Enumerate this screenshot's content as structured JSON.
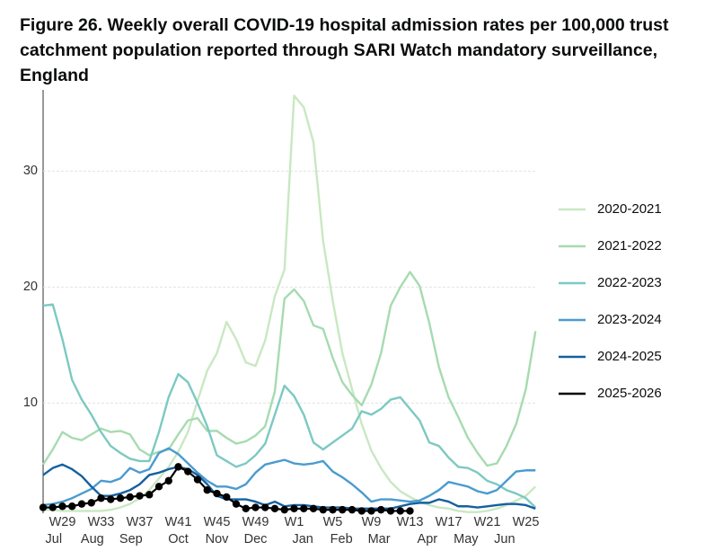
{
  "chart_data": {
    "type": "line",
    "title": "Figure 26. Weekly overall COVID-19 hospital admission rates per 100,000 trust catchment population reported through SARI Watch mandatory surveillance, England",
    "categories": [
      null,
      null,
      "W29",
      null,
      null,
      null,
      "W33",
      null,
      null,
      null,
      "W37",
      null,
      null,
      null,
      "W41",
      null,
      null,
      null,
      "W45",
      null,
      null,
      null,
      "W49",
      null,
      null,
      null,
      "W1",
      null,
      null,
      null,
      "W5",
      null,
      null,
      null,
      "W9",
      null,
      null,
      null,
      "W13",
      null,
      null,
      null,
      "W17",
      null,
      null,
      null,
      "W21",
      null,
      null,
      null,
      "W25",
      null
    ],
    "month_ticks": [
      {
        "value": 1.1,
        "label": "Jul"
      },
      {
        "value": 5.1,
        "label": "Aug"
      },
      {
        "value": 9.1,
        "label": "Sep"
      },
      {
        "value": 14,
        "label": "Oct"
      },
      {
        "value": 18,
        "label": "Nov"
      },
      {
        "value": 22,
        "label": "Dec"
      },
      {
        "value": 26.9,
        "label": "Jan"
      },
      {
        "value": 30.9,
        "label": "Feb"
      },
      {
        "value": 34.8,
        "label": "Mar"
      },
      {
        "value": 39.8,
        "label": "Apr"
      },
      {
        "value": 43.8,
        "label": "May"
      },
      {
        "value": 47.8,
        "label": "Jun"
      }
    ],
    "ylim": [
      0.5,
      37
    ],
    "yticks": [
      10,
      20,
      30
    ],
    "grid": true,
    "series": [
      {
        "name": "2020-2021",
        "color": "#c9e8c2",
        "values": [
          0.8,
          0.8,
          0.7,
          0.7,
          0.7,
          0.7,
          0.7,
          0.8,
          1.0,
          1.3,
          1.8,
          2.5,
          3.5,
          4.5,
          5.8,
          7.5,
          10.2,
          12.8,
          14.3,
          17,
          15.5,
          13.5,
          13.2,
          15.4,
          19.2,
          21.5,
          36.5,
          35.5,
          32.5,
          24,
          18.8,
          14.3,
          11.2,
          8.2,
          5.9,
          4.4,
          3.2,
          2.4,
          1.9,
          1.5,
          1.2,
          1.0,
          0.9,
          0.7,
          0.6,
          0.6,
          0.7,
          0.9,
          1.2,
          1.6,
          2.0,
          2.8
        ]
      },
      {
        "name": "2021-2022",
        "color": "#a6dbb0",
        "values": [
          4.7,
          6.0,
          7.5,
          7.0,
          6.8,
          7.3,
          7.8,
          7.5,
          7.6,
          7.3,
          6.0,
          5.5,
          5.8,
          6.0,
          7.3,
          8.5,
          8.7,
          7.6,
          7.6,
          7.0,
          6.5,
          6.7,
          7.2,
          8.0,
          11.0,
          19.0,
          19.8,
          18.8,
          16.7,
          16.4,
          13.9,
          11.8,
          10.7,
          9.8,
          11.6,
          14.3,
          18.4,
          20.0,
          21.3,
          20.1,
          16.9,
          13.1,
          10.5,
          8.8,
          7.0,
          5.7,
          4.6,
          4.8,
          6.3,
          8.2,
          11.2,
          16.2
        ]
      },
      {
        "name": "2022-2023",
        "color": "#7cc9c2",
        "values": [
          18.4,
          18.5,
          15.5,
          12,
          10.3,
          9,
          7.5,
          6.3,
          5.7,
          5.2,
          5.0,
          5.0,
          7.5,
          10.5,
          12.5,
          11.8,
          10,
          8,
          5.5,
          5.0,
          4.5,
          4.8,
          5.5,
          6.5,
          9,
          11.5,
          10.6,
          9.0,
          6.6,
          6.0,
          6.6,
          7.2,
          7.8,
          9.3,
          9.0,
          9.5,
          10.3,
          10.5,
          9.5,
          8.5,
          6.6,
          6.3,
          5.3,
          4.5,
          4.4,
          4.0,
          3.3,
          3.0,
          2.5,
          2.2,
          1.8,
          1.0
        ]
      },
      {
        "name": "2023-2024",
        "color": "#4a9bcf",
        "values": [
          1.2,
          1.3,
          1.5,
          1.8,
          2.2,
          2.6,
          3.3,
          3.2,
          3.5,
          4.4,
          4.0,
          4.3,
          5.7,
          6.1,
          5.6,
          4.8,
          4.0,
          3.3,
          2.8,
          2.8,
          2.6,
          3.0,
          4.0,
          4.7,
          4.9,
          5.1,
          4.8,
          4.7,
          4.8,
          5.0,
          4.1,
          3.6,
          3.0,
          2.3,
          1.5,
          1.7,
          1.7,
          1.6,
          1.5,
          1.6,
          2.0,
          2.5,
          3.2,
          3.0,
          2.8,
          2.4,
          2.2,
          2.5,
          3.3,
          4.1,
          4.2,
          4.2
        ]
      },
      {
        "name": "2024-2025",
        "color": "#15609f",
        "values": [
          3.8,
          4.4,
          4.7,
          4.3,
          3.7,
          2.8,
          2.0,
          2.0,
          2.2,
          2.5,
          3.0,
          3.8,
          4.0,
          4.3,
          4.5,
          4.3,
          3.8,
          3.0,
          2.0,
          1.7,
          1.7,
          1.7,
          1.5,
          1.2,
          1.5,
          1.1,
          1.2,
          1.2,
          1.1,
          1.0,
          1.0,
          1.0,
          0.9,
          0.9,
          0.9,
          0.9,
          0.9,
          1.1,
          1.3,
          1.4,
          1.4,
          1.7,
          1.5,
          1.1,
          1.1,
          1.0,
          1.1,
          1.2,
          1.3,
          1.3,
          1.2,
          0.9
        ]
      },
      {
        "name": "2025-2026",
        "color": "#000000",
        "markers": true,
        "values": [
          1.0,
          1.0,
          1.1,
          1.1,
          1.3,
          1.4,
          1.8,
          1.7,
          1.8,
          1.9,
          2.0,
          2.1,
          2.8,
          3.3,
          4.5,
          4.1,
          3.4,
          2.5,
          2.2,
          1.9,
          1.3,
          0.9,
          1.0,
          1.0,
          0.9,
          0.8,
          0.9,
          0.9,
          0.9,
          0.8,
          0.8,
          0.8,
          0.8,
          0.7,
          0.7,
          0.8,
          0.7,
          0.7,
          0.7,
          null,
          null,
          null,
          null,
          null,
          null,
          null,
          null,
          null,
          null,
          null,
          null,
          null
        ]
      }
    ]
  }
}
